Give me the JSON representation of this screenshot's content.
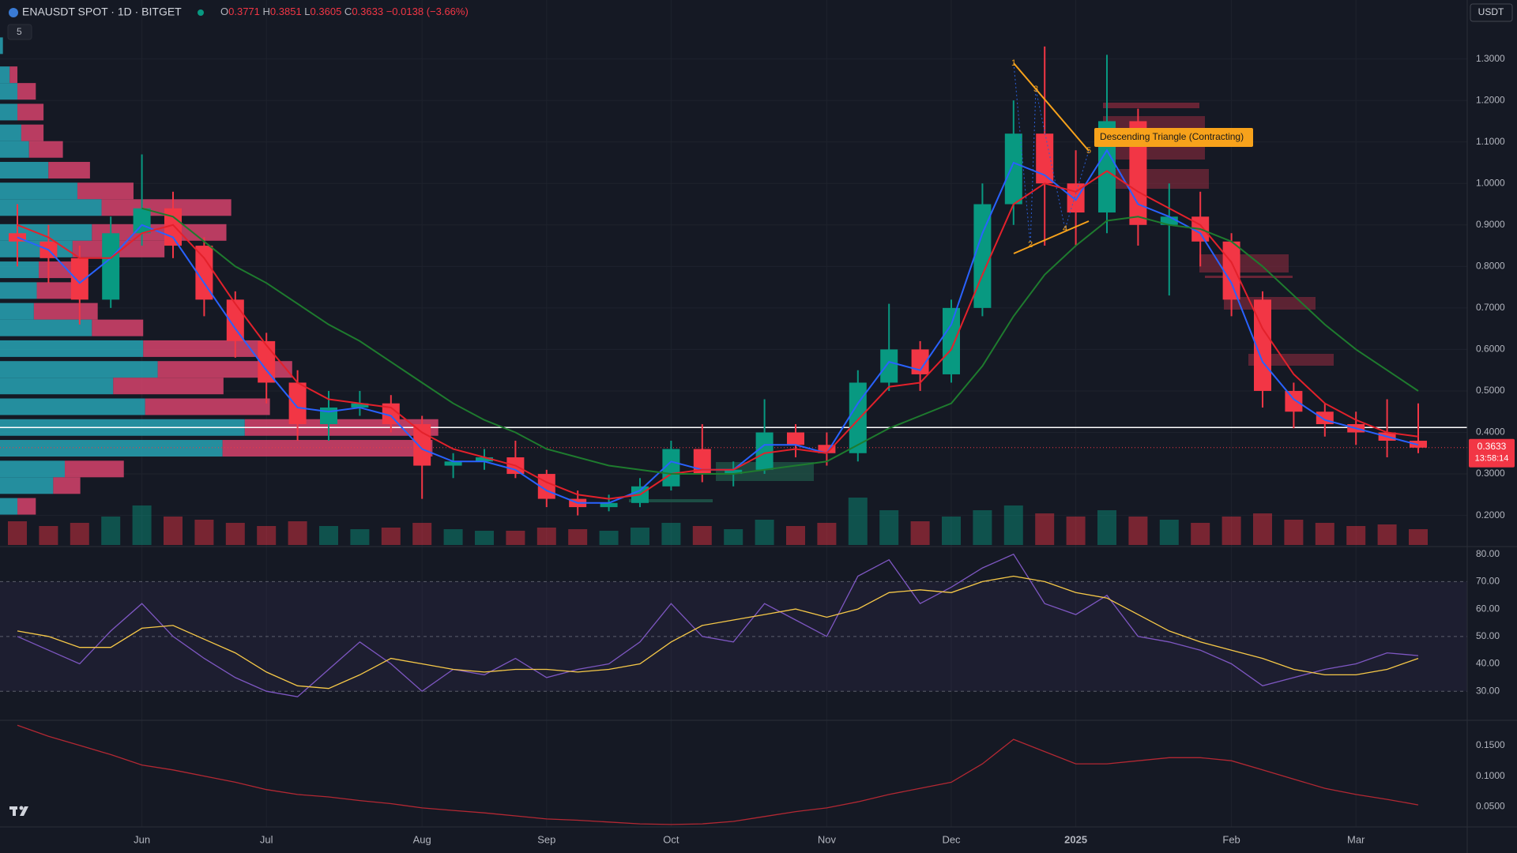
{
  "header": {
    "symbol": "ENAUSDT SPOT · 1D · BITGET",
    "quote_labels": [
      "O",
      "H",
      "L",
      "C"
    ],
    "quote_values": [
      0.3771,
      0.3851,
      0.3605,
      0.3633
    ],
    "change": {
      "value": -0.0138,
      "label": "−0.0138"
    },
    "change_pct": {
      "value": -3.66,
      "label": "(−3.66%)"
    },
    "indicator_count": 5,
    "currency": "USDT"
  },
  "chart_data": [
    {
      "type": "candlestick",
      "categories": [
        null,
        null,
        null,
        null,
        "Jun",
        null,
        null,
        null,
        "Jul",
        null,
        null,
        null,
        null,
        "Aug",
        null,
        null,
        null,
        "Sep",
        null,
        null,
        null,
        "Oct",
        null,
        null,
        null,
        null,
        "Nov",
        null,
        null,
        null,
        "Dec",
        null,
        null,
        null,
        "2025",
        null,
        null,
        null,
        null,
        "Feb",
        null,
        null,
        null,
        "Mar",
        null,
        null
      ],
      "open": [
        0.88,
        0.86,
        0.82,
        0.72,
        0.88,
        0.94,
        0.85,
        0.72,
        0.62,
        0.52,
        0.42,
        0.46,
        0.47,
        0.42,
        0.32,
        0.33,
        0.34,
        0.3,
        0.24,
        0.22,
        0.23,
        0.27,
        0.36,
        0.3,
        0.31,
        0.4,
        0.37,
        0.35,
        0.52,
        0.6,
        0.54,
        0.7,
        0.95,
        1.12,
        1.0,
        0.93,
        1.15,
        0.9,
        0.92,
        0.86,
        0.72,
        0.5,
        0.45,
        0.42,
        0.4,
        0.38
      ],
      "high": [
        0.95,
        0.9,
        0.85,
        0.92,
        1.07,
        0.98,
        0.87,
        0.74,
        0.64,
        0.55,
        0.5,
        0.5,
        0.49,
        0.44,
        0.35,
        0.36,
        0.38,
        0.31,
        0.26,
        0.25,
        0.29,
        0.38,
        0.42,
        0.33,
        0.48,
        0.42,
        0.4,
        0.55,
        0.71,
        0.62,
        0.72,
        1.0,
        1.2,
        1.33,
        1.08,
        1.31,
        1.18,
        1.0,
        0.98,
        0.88,
        0.74,
        0.52,
        0.47,
        0.45,
        0.48,
        0.47
      ],
      "low": [
        0.8,
        0.76,
        0.66,
        0.7,
        0.85,
        0.82,
        0.68,
        0.58,
        0.47,
        0.38,
        0.38,
        0.44,
        0.4,
        0.24,
        0.29,
        0.31,
        0.29,
        0.22,
        0.2,
        0.21,
        0.22,
        0.26,
        0.28,
        0.27,
        0.3,
        0.34,
        0.32,
        0.33,
        0.5,
        0.5,
        0.52,
        0.68,
        0.9,
        0.85,
        0.85,
        0.88,
        0.85,
        0.73,
        0.8,
        0.68,
        0.46,
        0.41,
        0.39,
        0.37,
        0.34,
        0.35
      ],
      "close": [
        0.86,
        0.82,
        0.72,
        0.88,
        0.94,
        0.85,
        0.72,
        0.62,
        0.52,
        0.42,
        0.46,
        0.47,
        0.42,
        0.32,
        0.33,
        0.34,
        0.3,
        0.24,
        0.22,
        0.23,
        0.27,
        0.36,
        0.3,
        0.31,
        0.4,
        0.37,
        0.35,
        0.52,
        0.6,
        0.54,
        0.7,
        0.95,
        1.12,
        1.0,
        0.93,
        1.15,
        0.9,
        0.92,
        0.86,
        0.72,
        0.5,
        0.45,
        0.42,
        0.4,
        0.38,
        0.3633
      ],
      "volume": [
        15,
        12,
        14,
        18,
        25,
        18,
        16,
        14,
        12,
        15,
        12,
        10,
        11,
        14,
        10,
        9,
        9,
        11,
        10,
        9,
        11,
        14,
        12,
        10,
        16,
        12,
        14,
        30,
        22,
        15,
        18,
        22,
        25,
        20,
        18,
        22,
        18,
        16,
        14,
        18,
        20,
        16,
        14,
        12,
        13,
        10
      ],
      "series": [
        {
          "color": "#2962ff",
          "values": [
            0.87,
            0.84,
            0.76,
            0.82,
            0.9,
            0.87,
            0.76,
            0.65,
            0.55,
            0.46,
            0.45,
            0.46,
            0.44,
            0.36,
            0.33,
            0.33,
            0.31,
            0.26,
            0.23,
            0.23,
            0.26,
            0.33,
            0.31,
            0.31,
            0.37,
            0.37,
            0.35,
            0.47,
            0.57,
            0.55,
            0.66,
            0.88,
            1.05,
            1.02,
            0.96,
            1.08,
            0.95,
            0.92,
            0.88,
            0.76,
            0.57,
            0.48,
            0.43,
            0.41,
            0.39,
            0.37
          ]
        },
        {
          "color": "#e3212b",
          "values": [
            0.9,
            0.87,
            0.82,
            0.82,
            0.88,
            0.9,
            0.82,
            0.71,
            0.61,
            0.52,
            0.48,
            0.47,
            0.46,
            0.4,
            0.36,
            0.34,
            0.32,
            0.28,
            0.25,
            0.24,
            0.25,
            0.3,
            0.31,
            0.31,
            0.35,
            0.36,
            0.35,
            0.43,
            0.51,
            0.52,
            0.6,
            0.78,
            0.95,
            1.0,
            0.98,
            1.03,
            0.98,
            0.94,
            0.9,
            0.81,
            0.65,
            0.54,
            0.47,
            0.43,
            0.4,
            0.39
          ]
        },
        {
          "color": "#1e7b2e",
          "values": [
            null,
            null,
            null,
            null,
            0.94,
            0.92,
            0.86,
            0.8,
            0.76,
            0.71,
            0.66,
            0.62,
            0.57,
            0.52,
            0.47,
            0.43,
            0.4,
            0.36,
            0.34,
            0.32,
            0.31,
            0.3,
            0.3,
            0.3,
            0.31,
            0.32,
            0.33,
            0.37,
            0.41,
            0.44,
            0.47,
            0.56,
            0.68,
            0.78,
            0.85,
            0.91,
            0.92,
            0.9,
            0.89,
            0.86,
            0.8,
            0.73,
            0.66,
            0.6,
            0.55,
            0.5
          ]
        }
      ],
      "volume_profile": {
        "levels": [
          1.33,
          1.26,
          1.22,
          1.17,
          1.12,
          1.08,
          1.03,
          0.98,
          0.94,
          0.88,
          0.84,
          0.79,
          0.74,
          0.69,
          0.65,
          0.6,
          0.55,
          0.51,
          0.46,
          0.41,
          0.36,
          0.31,
          0.27,
          0.22
        ],
        "up": [
          3,
          10,
          18,
          18,
          22,
          30,
          50,
          80,
          105,
          95,
          75,
          40,
          38,
          35,
          95,
          148,
          163,
          117,
          150,
          253,
          230,
          67,
          55,
          18
        ],
        "down": [
          0,
          8,
          19,
          27,
          23,
          35,
          43,
          58,
          134,
          139,
          95,
          45,
          50,
          66,
          53,
          122,
          139,
          114,
          129,
          200,
          217,
          61,
          28,
          19
        ]
      },
      "ylim": [
        0.125,
        1.442
      ],
      "yticks": [
        {
          "value": 0.2,
          "label": "0.2000"
        },
        {
          "value": 0.3,
          "label": "0.3000"
        },
        {
          "value": 0.4,
          "label": "0.4000"
        },
        {
          "value": 0.5,
          "label": "0.5000"
        },
        {
          "value": 0.6,
          "label": "0.6000"
        },
        {
          "value": 0.7,
          "label": "0.7000"
        },
        {
          "value": 0.8,
          "label": "0.8000"
        },
        {
          "value": 0.9,
          "label": "0.9000"
        },
        {
          "value": 1.0,
          "label": "1.0000"
        },
        {
          "value": 1.1,
          "label": "1.1000"
        },
        {
          "value": 1.2,
          "label": "1.2000"
        },
        {
          "value": 1.3,
          "label": "1.3000"
        }
      ],
      "horizontal_line": 0.412,
      "last_price": {
        "value": 0.3633,
        "label": "0.3633"
      },
      "countdown": "13:58:14",
      "pattern_label": "Descending Triangle (Contracting)",
      "pattern_points": [
        "1",
        "2",
        "3",
        "4",
        "5"
      ]
    },
    {
      "type": "line",
      "series": [
        {
          "color": "#7e57c2",
          "values": [
            50,
            45,
            40,
            52,
            62,
            50,
            42,
            35,
            30,
            28,
            38,
            48,
            40,
            30,
            38,
            36,
            42,
            35,
            38,
            40,
            48,
            62,
            50,
            48,
            62,
            56,
            50,
            72,
            78,
            62,
            68,
            75,
            80,
            62,
            58,
            65,
            50,
            48,
            45,
            40,
            32,
            35,
            38,
            40,
            44,
            43
          ]
        },
        {
          "color": "#f7c948",
          "values": [
            52,
            50,
            46,
            46,
            53,
            54,
            49,
            44,
            37,
            32,
            31,
            36,
            42,
            40,
            38,
            37,
            38,
            38,
            37,
            38,
            40,
            48,
            54,
            56,
            58,
            60,
            57,
            60,
            66,
            67,
            66,
            70,
            72,
            70,
            66,
            64,
            58,
            52,
            48,
            45,
            42,
            38,
            36,
            36,
            38,
            42
          ]
        }
      ],
      "ylim": [
        19.4,
        82.8
      ],
      "yticks": [
        {
          "value": 30,
          "label": "30.00"
        },
        {
          "value": 40,
          "label": "40.00"
        },
        {
          "value": 50,
          "label": "50.00"
        },
        {
          "value": 60,
          "label": "60.00"
        },
        {
          "value": 70,
          "label": "70.00"
        },
        {
          "value": 80,
          "label": "80.00"
        }
      ],
      "bands": [
        30,
        50,
        70
      ]
    },
    {
      "type": "line",
      "series": [
        {
          "color": "#b22833",
          "values": [
            0.183,
            0.165,
            0.15,
            0.135,
            0.118,
            0.11,
            0.1,
            0.09,
            0.078,
            0.07,
            0.066,
            0.06,
            0.055,
            0.048,
            0.044,
            0.04,
            0.035,
            0.03,
            0.028,
            0.025,
            0.022,
            0.021,
            0.022,
            0.026,
            0.034,
            0.042,
            0.048,
            0.058,
            0.07,
            0.08,
            0.09,
            0.12,
            0.16,
            0.14,
            0.12,
            0.12,
            0.125,
            0.13,
            0.13,
            0.125,
            0.11,
            0.095,
            0.08,
            0.07,
            0.062,
            0.053
          ]
        }
      ],
      "ylim": [
        0.017,
        0.191
      ],
      "yticks": [
        {
          "value": 0.05,
          "label": "0.0500"
        },
        {
          "value": 0.1,
          "label": "0.1000"
        },
        {
          "value": 0.15,
          "label": "0.1500"
        }
      ]
    }
  ]
}
